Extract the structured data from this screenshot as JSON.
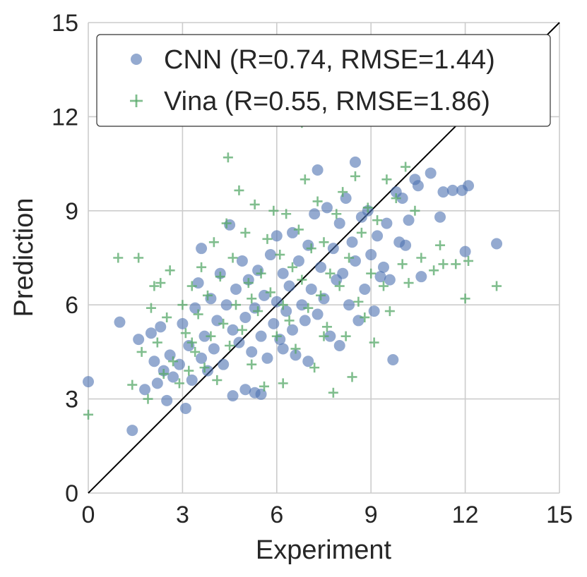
{
  "chart_data": {
    "type": "scatter",
    "xlabel": "Experiment",
    "ylabel": "Prediction",
    "xlim": [
      0,
      15
    ],
    "ylim": [
      0,
      15
    ],
    "xticks": [
      "0",
      "3",
      "6",
      "9",
      "12",
      "15"
    ],
    "yticks": [
      "0",
      "3",
      "6",
      "9",
      "12",
      "15"
    ],
    "grid": true,
    "legend_position": "top-right",
    "reference_line": {
      "kind": "identity",
      "from": [
        0,
        0
      ],
      "to": [
        15,
        15
      ],
      "color": "#000000"
    },
    "series": [
      {
        "name": "CNN (R=0.74, RMSE=1.44)",
        "marker": "circle",
        "color": "#4c72b0",
        "points": [
          [
            0.0,
            3.55
          ],
          [
            1.0,
            5.45
          ],
          [
            1.4,
            2.0
          ],
          [
            1.6,
            4.9
          ],
          [
            1.8,
            3.3
          ],
          [
            2.0,
            5.1
          ],
          [
            2.1,
            4.2
          ],
          [
            2.2,
            3.5
          ],
          [
            2.3,
            5.3
          ],
          [
            2.4,
            3.9
          ],
          [
            2.5,
            2.95
          ],
          [
            2.6,
            4.4
          ],
          [
            2.7,
            3.7
          ],
          [
            2.9,
            4.1
          ],
          [
            3.0,
            5.4
          ],
          [
            3.1,
            2.7
          ],
          [
            3.2,
            4.7
          ],
          [
            3.3,
            3.6
          ],
          [
            3.4,
            5.9
          ],
          [
            3.5,
            6.7
          ],
          [
            3.6,
            7.8
          ],
          [
            3.6,
            4.3
          ],
          [
            3.7,
            5.0
          ],
          [
            3.8,
            3.9
          ],
          [
            3.9,
            6.2
          ],
          [
            4.0,
            4.6
          ],
          [
            4.1,
            5.5
          ],
          [
            4.2,
            7.0
          ],
          [
            4.3,
            4.1
          ],
          [
            4.4,
            6.0
          ],
          [
            4.5,
            8.55
          ],
          [
            4.6,
            5.2
          ],
          [
            4.6,
            3.1
          ],
          [
            4.7,
            6.5
          ],
          [
            4.8,
            4.8
          ],
          [
            4.9,
            7.4
          ],
          [
            5.0,
            5.6
          ],
          [
            5.0,
            3.3
          ],
          [
            5.1,
            6.8
          ],
          [
            5.2,
            4.5
          ],
          [
            5.3,
            5.9
          ],
          [
            5.3,
            3.2
          ],
          [
            5.4,
            7.1
          ],
          [
            5.5,
            5.0
          ],
          [
            5.5,
            3.15
          ],
          [
            5.6,
            6.3
          ],
          [
            5.7,
            4.3
          ],
          [
            5.8,
            7.6
          ],
          [
            5.9,
            5.4
          ],
          [
            6.0,
            6.1
          ],
          [
            6.0,
            8.2
          ],
          [
            6.1,
            4.9
          ],
          [
            6.2,
            7.0
          ],
          [
            6.3,
            5.8
          ],
          [
            6.4,
            6.6
          ],
          [
            6.5,
            8.3
          ],
          [
            6.5,
            5.2
          ],
          [
            6.6,
            4.4
          ],
          [
            6.7,
            7.4
          ],
          [
            6.8,
            6.0
          ],
          [
            6.9,
            5.5
          ],
          [
            7.0,
            7.9
          ],
          [
            7.0,
            4.2
          ],
          [
            7.1,
            6.5
          ],
          [
            7.2,
            8.9
          ],
          [
            7.3,
            5.7
          ],
          [
            7.3,
            10.3
          ],
          [
            7.4,
            7.2
          ],
          [
            7.5,
            6.2
          ],
          [
            7.6,
            9.1
          ],
          [
            7.7,
            5.0
          ],
          [
            7.8,
            7.8
          ],
          [
            7.9,
            6.8
          ],
          [
            8.0,
            8.6
          ],
          [
            8.0,
            4.7
          ],
          [
            8.1,
            7.0
          ],
          [
            8.2,
            9.4
          ],
          [
            8.3,
            6.0
          ],
          [
            8.4,
            8.0
          ],
          [
            8.5,
            7.4
          ],
          [
            8.5,
            10.55
          ],
          [
            8.6,
            5.5
          ],
          [
            8.7,
            8.8
          ],
          [
            8.8,
            6.5
          ],
          [
            8.9,
            9.0
          ],
          [
            9.0,
            7.6
          ],
          [
            9.1,
            5.8
          ],
          [
            9.2,
            8.2
          ],
          [
            9.3,
            6.9
          ],
          [
            9.4,
            7.2
          ],
          [
            9.5,
            8.6
          ],
          [
            9.6,
            6.8
          ],
          [
            9.7,
            4.25
          ],
          [
            9.8,
            9.6
          ],
          [
            9.9,
            8.0
          ],
          [
            10.0,
            9.4
          ],
          [
            10.1,
            7.9
          ],
          [
            10.2,
            8.7
          ],
          [
            10.4,
            10.0
          ],
          [
            10.5,
            9.8
          ],
          [
            10.6,
            6.9
          ],
          [
            10.9,
            10.2
          ],
          [
            11.2,
            8.8
          ],
          [
            11.3,
            9.6
          ],
          [
            11.6,
            9.65
          ],
          [
            11.9,
            9.65
          ],
          [
            12.0,
            7.7
          ],
          [
            12.1,
            9.8
          ],
          [
            13.0,
            7.95
          ],
          [
            6.2,
            4.6
          ]
        ]
      },
      {
        "name": "Vina (R=0.55, RMSE=1.86)",
        "marker": "plus",
        "color": "#55a868",
        "points": [
          [
            0.0,
            2.5
          ],
          [
            0.95,
            7.5
          ],
          [
            1.4,
            3.45
          ],
          [
            1.6,
            7.5
          ],
          [
            1.7,
            4.5
          ],
          [
            1.9,
            3.0
          ],
          [
            2.0,
            5.9
          ],
          [
            2.1,
            6.6
          ],
          [
            2.2,
            4.8
          ],
          [
            2.3,
            6.7
          ],
          [
            2.4,
            3.8
          ],
          [
            2.5,
            5.6
          ],
          [
            2.6,
            7.1
          ],
          [
            2.7,
            4.2
          ],
          [
            2.9,
            3.5
          ],
          [
            3.0,
            6.0
          ],
          [
            3.1,
            5.1
          ],
          [
            3.2,
            3.9
          ],
          [
            3.3,
            6.6
          ],
          [
            3.4,
            4.5
          ],
          [
            3.5,
            5.7
          ],
          [
            3.6,
            7.2
          ],
          [
            3.7,
            4.0
          ],
          [
            3.8,
            6.3
          ],
          [
            3.9,
            5.0
          ],
          [
            4.0,
            8.0
          ],
          [
            4.1,
            3.6
          ],
          [
            4.2,
            6.9
          ],
          [
            4.3,
            5.4
          ],
          [
            4.4,
            8.6
          ],
          [
            4.45,
            10.7
          ],
          [
            4.5,
            4.7
          ],
          [
            4.6,
            7.5
          ],
          [
            4.7,
            6.0
          ],
          [
            4.8,
            9.65
          ],
          [
            4.9,
            5.2
          ],
          [
            5.0,
            8.3
          ],
          [
            5.1,
            6.7
          ],
          [
            5.2,
            4.1
          ],
          [
            5.3,
            9.2
          ],
          [
            5.4,
            5.8
          ],
          [
            5.5,
            7.0
          ],
          [
            5.6,
            3.4
          ],
          [
            5.7,
            8.1
          ],
          [
            5.8,
            6.4
          ],
          [
            5.9,
            9.0
          ],
          [
            6.0,
            5.0
          ],
          [
            6.1,
            7.6
          ],
          [
            6.2,
            6.0
          ],
          [
            6.3,
            8.9
          ],
          [
            6.4,
            5.5
          ],
          [
            6.5,
            7.2
          ],
          [
            6.6,
            4.6
          ],
          [
            6.7,
            8.4
          ],
          [
            6.8,
            6.8
          ],
          [
            6.9,
            10.0
          ],
          [
            7.0,
            5.9
          ],
          [
            7.1,
            7.8
          ],
          [
            7.2,
            4.0
          ],
          [
            7.3,
            9.3
          ],
          [
            7.4,
            6.3
          ],
          [
            7.5,
            8.0
          ],
          [
            7.6,
            5.3
          ],
          [
            7.7,
            7.0
          ],
          [
            7.8,
            3.2
          ],
          [
            7.9,
            8.9
          ],
          [
            8.0,
            6.6
          ],
          [
            8.1,
            9.6
          ],
          [
            8.2,
            5.0
          ],
          [
            8.3,
            7.5
          ],
          [
            8.4,
            3.7
          ],
          [
            8.5,
            10.1
          ],
          [
            8.6,
            6.1
          ],
          [
            8.7,
            8.3
          ],
          [
            8.8,
            5.6
          ],
          [
            8.9,
            9.1
          ],
          [
            9.0,
            7.0
          ],
          [
            9.1,
            4.8
          ],
          [
            9.2,
            8.7
          ],
          [
            9.4,
            6.6
          ],
          [
            9.5,
            10.0
          ],
          [
            9.6,
            5.8
          ],
          [
            9.8,
            9.4
          ],
          [
            10.0,
            7.3
          ],
          [
            10.1,
            10.4
          ],
          [
            10.2,
            6.7
          ],
          [
            10.4,
            9.0
          ],
          [
            10.6,
            7.5
          ],
          [
            11.0,
            7.1
          ],
          [
            11.2,
            7.9
          ],
          [
            11.3,
            7.3
          ],
          [
            11.7,
            7.3
          ],
          [
            12.0,
            6.2
          ],
          [
            12.1,
            7.4
          ],
          [
            13.0,
            6.6
          ],
          [
            6.2,
            3.5
          ],
          [
            5.2,
            6.2
          ],
          [
            7.5,
            5.0
          ],
          [
            3.3,
            4.8
          ],
          [
            6.8,
            11.8
          ]
        ]
      }
    ]
  }
}
